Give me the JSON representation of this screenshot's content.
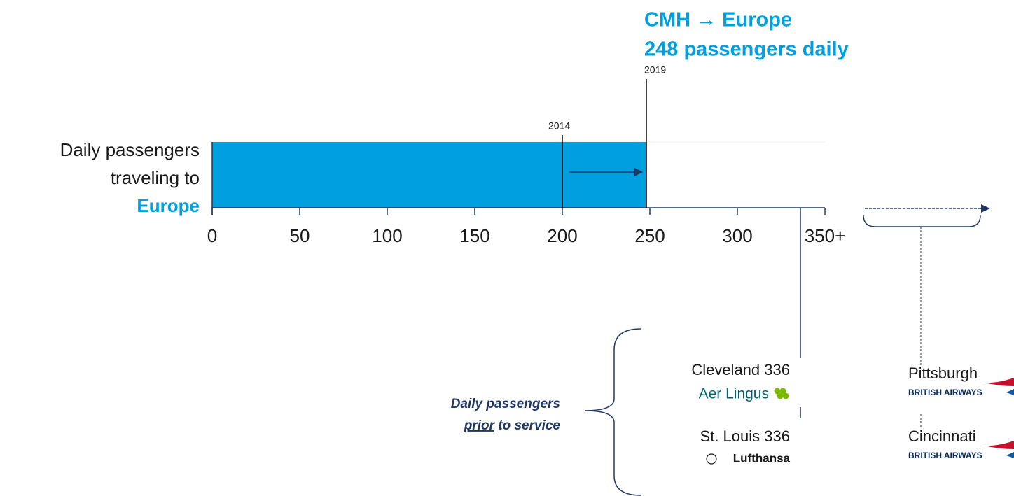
{
  "chart_data": {
    "type": "bar",
    "orientation": "horizontal",
    "title": "CMH → Europe",
    "subtitle": "248 passengers daily",
    "ylabel": [
      "Daily passengers",
      "traveling to",
      "Europe"
    ],
    "values": [
      248
    ],
    "color": "#009fdf",
    "xlim": [
      0,
      350
    ],
    "xticks": [
      0,
      50,
      100,
      150,
      200,
      250,
      300,
      {
        "value": 350,
        "label": "350+"
      }
    ],
    "markers": [
      {
        "label": "2019",
        "value": 248
      },
      {
        "label": "2014",
        "value": 200
      }
    ],
    "comparisons": [
      {
        "city": "Cleveland",
        "value": 336,
        "airline": "Aer Lingus"
      },
      {
        "city": "St. Louis",
        "value": 336,
        "airline": "Lufthansa"
      }
    ],
    "beyond": [
      {
        "city": "Pittsburgh",
        "airline": "BRITISH AIRWAYS"
      },
      {
        "city": "Cincinnati",
        "airline": "BRITISH AIRWAYS"
      }
    ],
    "note": [
      "Daily passengers",
      "prior",
      "to service"
    ]
  }
}
